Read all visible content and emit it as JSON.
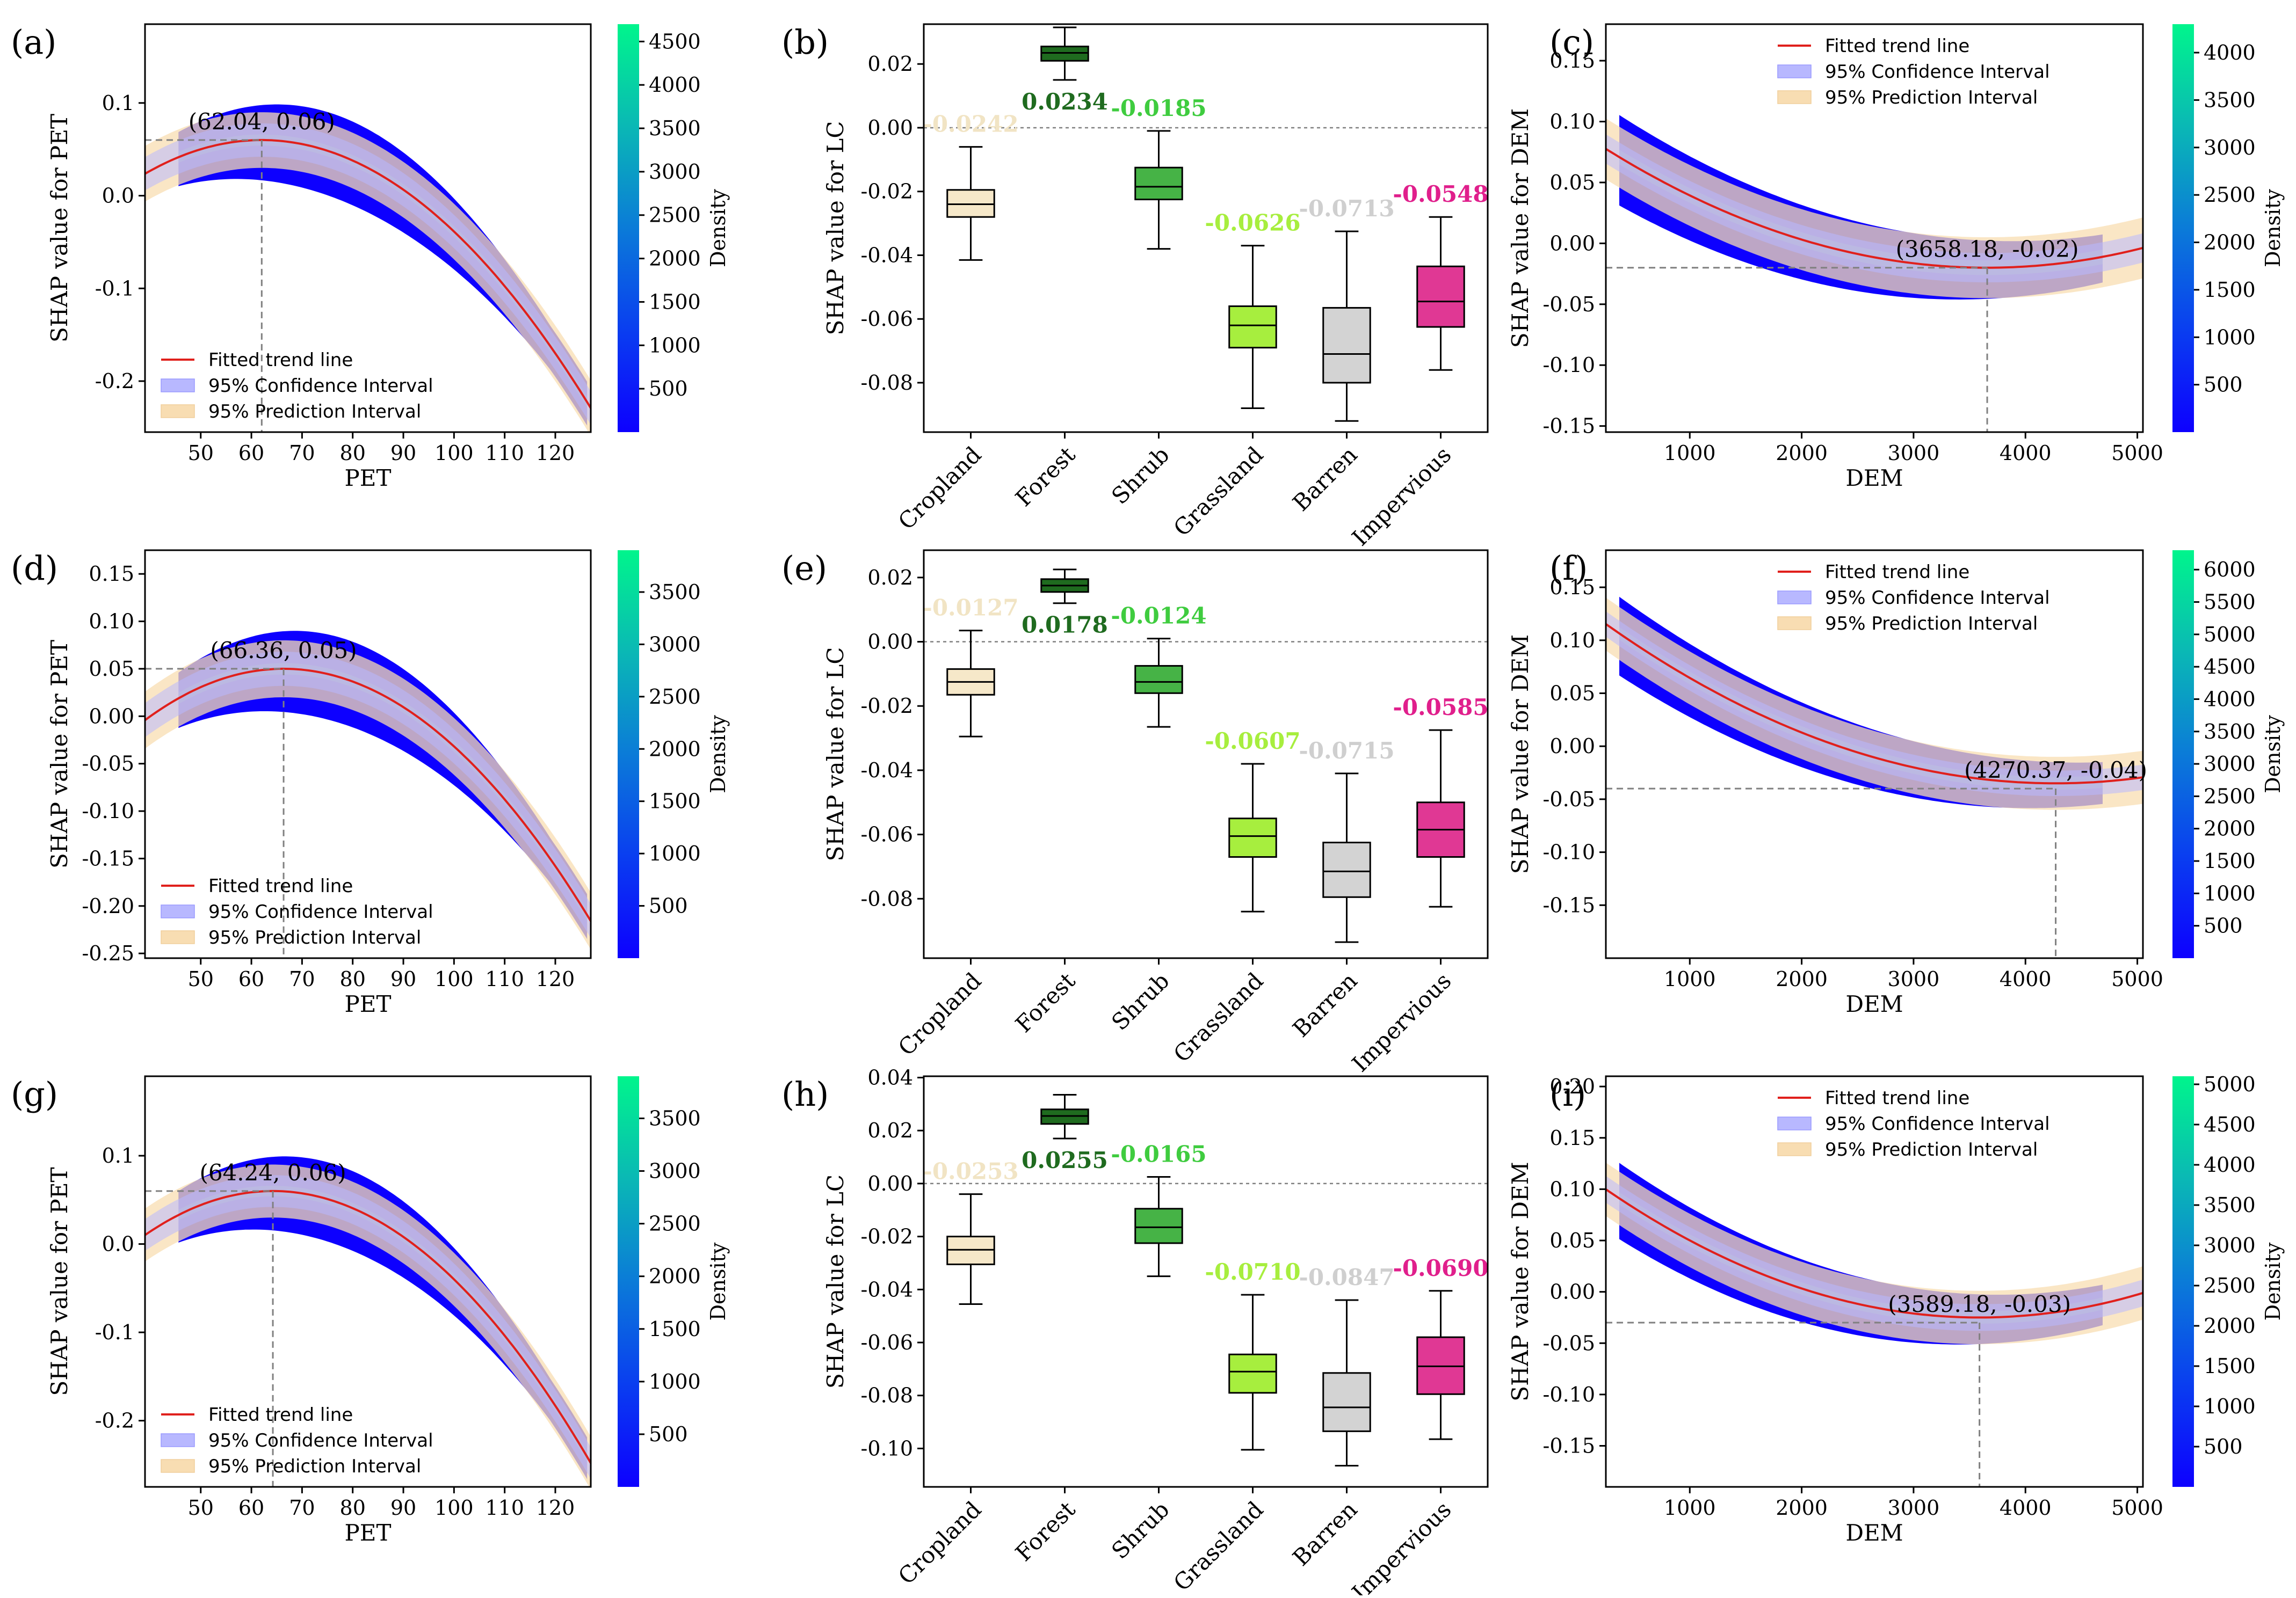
{
  "colors": {
    "trend": "#e0201c",
    "ci": "#b8b8ff",
    "pi": "#f8ddb2",
    "frame": "#000000",
    "ref_line": "#808080"
  },
  "legend_labels": {
    "trend": "Fitted trend line",
    "ci": "95% Confidence Interval",
    "pi": "95% Prediction Interval"
  },
  "colorbar_label": "Density",
  "chart_data": [
    {
      "panel": "(a)",
      "type": "scatter",
      "subtype": "shap_dependence_pet",
      "xlabel": "PET",
      "ylabel": "SHAP value for PET",
      "xlim": [
        39,
        127
      ],
      "ylim": [
        -0.255,
        0.185
      ],
      "xticks": [
        50,
        60,
        70,
        80,
        90,
        100,
        110,
        120
      ],
      "yticks": [
        0.1,
        0.0,
        -0.1,
        -0.2
      ],
      "peak": {
        "x": 62.04,
        "y": 0.06,
        "label": "(62.04, 0.06)"
      },
      "fit": {
        "a": -6.85e-05,
        "x0": 62.04,
        "y0": 0.06
      },
      "ci_half_width": 0.018,
      "pi_half_width": 0.03,
      "density_max": 4700,
      "colorbar_ticks": [
        500,
        1000,
        1500,
        2000,
        2500,
        3000,
        3500,
        4000,
        4500
      ],
      "legend_position": "lower-left"
    },
    {
      "panel": "(b)",
      "type": "box",
      "subtype": "shap_lc",
      "ylabel": "SHAP value for LC",
      "ylim": [
        -0.0955,
        0.0325
      ],
      "yticks": [
        0.02,
        0.0,
        -0.02,
        -0.04,
        -0.06,
        -0.08
      ],
      "categories": [
        "Cropland",
        "Forest",
        "Shrub",
        "Grassland",
        "Barren",
        "Impervious"
      ],
      "box_colors": [
        "#f6e8c9",
        "#1f6b1f",
        "#46b346",
        "#a7ee3e",
        "#d3d3d3",
        "#e03894"
      ],
      "label_colors": [
        "#f1e4c4",
        "#1f6b1f",
        "#3fcc3f",
        "#a7ee3e",
        "#cfcfcf",
        "#e01f8c"
      ],
      "value_labels": [
        "-0.0242",
        "0.0234",
        "-0.0185",
        "-0.0626",
        "-0.0713",
        "-0.0548"
      ],
      "boxes": [
        {
          "whislo": -0.0415,
          "q1": -0.028,
          "med": -0.024,
          "q3": -0.0195,
          "whishi": -0.006
        },
        {
          "whislo": 0.015,
          "q1": 0.021,
          "med": 0.0235,
          "q3": 0.0255,
          "whishi": 0.0315
        },
        {
          "whislo": -0.038,
          "q1": -0.0225,
          "med": -0.0185,
          "q3": -0.0125,
          "whishi": -0.001
        },
        {
          "whislo": -0.088,
          "q1": -0.069,
          "med": -0.062,
          "q3": -0.056,
          "whishi": -0.037
        },
        {
          "whislo": -0.092,
          "q1": -0.08,
          "med": -0.071,
          "q3": -0.0565,
          "whishi": -0.0325
        },
        {
          "whislo": -0.076,
          "q1": -0.0625,
          "med": -0.0545,
          "q3": -0.0435,
          "whishi": -0.028
        }
      ]
    },
    {
      "panel": "(c)",
      "type": "scatter",
      "subtype": "shap_dependence_dem",
      "xlabel": "DEM",
      "ylabel": "SHAP value for DEM",
      "xlim": [
        250,
        5050
      ],
      "ylim": [
        -0.155,
        0.18
      ],
      "xticks": [
        1000,
        2000,
        3000,
        4000,
        5000
      ],
      "yticks": [
        0.15,
        0.1,
        0.05,
        0.0,
        -0.05,
        -0.1,
        -0.15
      ],
      "trough": {
        "x": 3658.18,
        "y": -0.02,
        "label": "(3658.18, -0.02)"
      },
      "fit": {
        "a": 8.4e-09,
        "x0": 3658.18,
        "y0": -0.02
      },
      "ci_half_width": 0.012,
      "pi_half_width": 0.025,
      "density_max": 4300,
      "colorbar_ticks": [
        500,
        1000,
        1500,
        2000,
        2500,
        3000,
        3500,
        4000
      ],
      "legend_position": "top-right"
    },
    {
      "panel": "(d)",
      "type": "scatter",
      "subtype": "shap_dependence_pet",
      "xlabel": "PET",
      "ylabel": "SHAP value for PET",
      "xlim": [
        39,
        127
      ],
      "ylim": [
        -0.255,
        0.175
      ],
      "xticks": [
        50,
        60,
        70,
        80,
        90,
        100,
        110,
        120
      ],
      "yticks": [
        0.15,
        0.1,
        0.05,
        0.0,
        -0.05,
        -0.1,
        -0.15,
        -0.2,
        -0.25
      ],
      "peak": {
        "x": 66.36,
        "y": 0.05,
        "label": "(66.36, 0.05)"
      },
      "fit": {
        "a": -7.23e-05,
        "x0": 66.36,
        "y0": 0.05
      },
      "ci_half_width": 0.018,
      "pi_half_width": 0.03,
      "density_max": 3900,
      "colorbar_ticks": [
        500,
        1000,
        1500,
        2000,
        2500,
        3000,
        3500
      ],
      "legend_position": "lower-left"
    },
    {
      "panel": "(e)",
      "type": "box",
      "subtype": "shap_lc",
      "ylabel": "SHAP value for LC",
      "ylim": [
        -0.0985,
        0.0285
      ],
      "yticks": [
        0.02,
        0.0,
        -0.02,
        -0.04,
        -0.06,
        -0.08
      ],
      "categories": [
        "Cropland",
        "Forest",
        "Shrub",
        "Grassland",
        "Barren",
        "Impervious"
      ],
      "box_colors": [
        "#f6e8c9",
        "#1f6b1f",
        "#46b346",
        "#a7ee3e",
        "#d3d3d3",
        "#e03894"
      ],
      "label_colors": [
        "#f1e4c4",
        "#1f6b1f",
        "#3fcc3f",
        "#a7ee3e",
        "#cfcfcf",
        "#e01f8c"
      ],
      "value_labels": [
        "-0.0127",
        "0.0178",
        "-0.0124",
        "-0.0607",
        "-0.0715",
        "-0.0585"
      ],
      "boxes": [
        {
          "whislo": -0.0295,
          "q1": -0.0165,
          "med": -0.0125,
          "q3": -0.0085,
          "whishi": 0.0035
        },
        {
          "whislo": 0.012,
          "q1": 0.0155,
          "med": 0.0175,
          "q3": 0.0195,
          "whishi": 0.0225
        },
        {
          "whislo": -0.0265,
          "q1": -0.016,
          "med": -0.0125,
          "q3": -0.0075,
          "whishi": 0.001
        },
        {
          "whislo": -0.084,
          "q1": -0.067,
          "med": -0.0605,
          "q3": -0.055,
          "whishi": -0.038
        },
        {
          "whislo": -0.0935,
          "q1": -0.0795,
          "med": -0.0715,
          "q3": -0.0625,
          "whishi": -0.041
        },
        {
          "whislo": -0.0825,
          "q1": -0.067,
          "med": -0.0585,
          "q3": -0.05,
          "whishi": -0.0275
        }
      ]
    },
    {
      "panel": "(f)",
      "type": "scatter",
      "subtype": "shap_dependence_dem",
      "xlabel": "DEM",
      "ylabel": "SHAP value for DEM",
      "xlim": [
        250,
        5050
      ],
      "ylim": [
        -0.2,
        0.185
      ],
      "xticks": [
        1000,
        2000,
        3000,
        4000,
        5000
      ],
      "yticks": [
        0.15,
        0.1,
        0.05,
        0.0,
        -0.05,
        -0.1,
        -0.15
      ],
      "trough": {
        "x": 4270.37,
        "y": -0.04,
        "label": "(4270.37, -0.04)"
      },
      "fit": {
        "a": 9.3e-09,
        "x0": 4270.37,
        "y0": -0.035
      },
      "ci_half_width": 0.012,
      "pi_half_width": 0.025,
      "density_max": 6300,
      "colorbar_ticks": [
        500,
        1000,
        1500,
        2000,
        2500,
        3000,
        3500,
        4000,
        4500,
        5000,
        5500,
        6000
      ],
      "legend_position": "top-right"
    },
    {
      "panel": "(g)",
      "type": "scatter",
      "subtype": "shap_dependence_pet",
      "xlabel": "PET",
      "ylabel": "SHAP value for PET",
      "xlim": [
        39,
        127
      ],
      "ylim": [
        -0.275,
        0.19
      ],
      "xticks": [
        50,
        60,
        70,
        80,
        90,
        100,
        110,
        120
      ],
      "yticks": [
        0.1,
        0.0,
        -0.1,
        -0.2
      ],
      "peak": {
        "x": 64.24,
        "y": 0.06,
        "label": "(64.24, 0.06)"
      },
      "fit": {
        "a": -7.82e-05,
        "x0": 64.24,
        "y0": 0.06
      },
      "ci_half_width": 0.018,
      "pi_half_width": 0.03,
      "density_max": 3900,
      "colorbar_ticks": [
        500,
        1000,
        1500,
        2000,
        2500,
        3000,
        3500
      ],
      "legend_position": "lower-left"
    },
    {
      "panel": "(h)",
      "type": "box",
      "subtype": "shap_lc",
      "ylabel": "SHAP value for LC",
      "ylim": [
        -0.1145,
        0.0405
      ],
      "yticks": [
        0.04,
        0.02,
        0.0,
        -0.02,
        -0.04,
        -0.06,
        -0.08,
        -0.1
      ],
      "categories": [
        "Cropland",
        "Forest",
        "Shrub",
        "Grassland",
        "Barren",
        "Impervious"
      ],
      "box_colors": [
        "#f6e8c9",
        "#1f6b1f",
        "#46b346",
        "#a7ee3e",
        "#d3d3d3",
        "#e03894"
      ],
      "label_colors": [
        "#f1e4c4",
        "#1f6b1f",
        "#3fcc3f",
        "#a7ee3e",
        "#cfcfcf",
        "#e01f8c"
      ],
      "value_labels": [
        "-0.0253",
        "0.0255",
        "-0.0165",
        "-0.0710",
        "-0.0847",
        "-0.0690"
      ],
      "boxes": [
        {
          "whislo": -0.0455,
          "q1": -0.0305,
          "med": -0.025,
          "q3": -0.02,
          "whishi": -0.004
        },
        {
          "whislo": 0.017,
          "q1": 0.0225,
          "med": 0.0255,
          "q3": 0.028,
          "whishi": 0.0335
        },
        {
          "whislo": -0.035,
          "q1": -0.0225,
          "med": -0.0165,
          "q3": -0.0095,
          "whishi": 0.0025
        },
        {
          "whislo": -0.1005,
          "q1": -0.079,
          "med": -0.071,
          "q3": -0.0645,
          "whishi": -0.042
        },
        {
          "whislo": -0.1065,
          "q1": -0.0935,
          "med": -0.0845,
          "q3": -0.0715,
          "whishi": -0.044
        },
        {
          "whislo": -0.0965,
          "q1": -0.0795,
          "med": -0.069,
          "q3": -0.058,
          "whishi": -0.0405
        }
      ]
    },
    {
      "panel": "(i)",
      "type": "scatter",
      "subtype": "shap_dependence_dem",
      "xlabel": "DEM",
      "ylabel": "SHAP value for DEM",
      "xlim": [
        250,
        5050
      ],
      "ylim": [
        -0.19,
        0.21
      ],
      "xticks": [
        1000,
        2000,
        3000,
        4000,
        5000
      ],
      "yticks": [
        0.2,
        0.15,
        0.1,
        0.05,
        0.0,
        -0.05,
        -0.1,
        -0.15
      ],
      "trough": {
        "x": 3589.18,
        "y": -0.03,
        "label": "(3589.18, -0.03)"
      },
      "fit": {
        "a": 1.12e-08,
        "x0": 3589.18,
        "y0": -0.025
      },
      "ci_half_width": 0.013,
      "pi_half_width": 0.026,
      "density_max": 5100,
      "colorbar_ticks": [
        500,
        1000,
        1500,
        2000,
        2500,
        3000,
        3500,
        4000,
        4500,
        5000
      ],
      "legend_position": "top-right"
    }
  ]
}
